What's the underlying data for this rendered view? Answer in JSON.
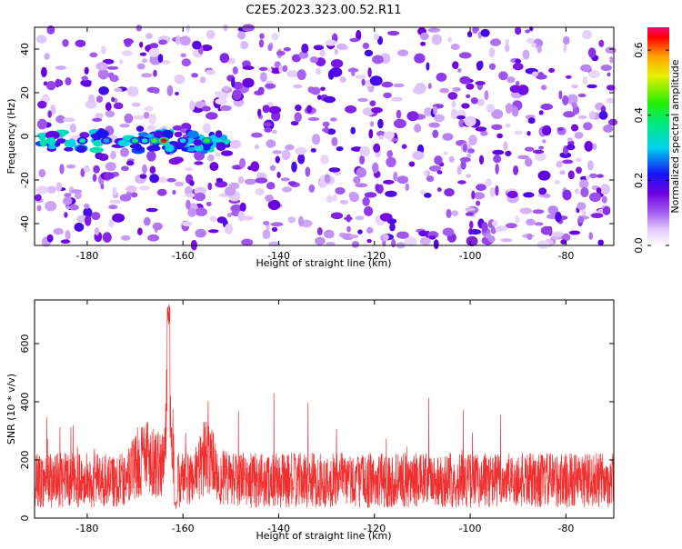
{
  "title": "C2E5.2023.323.00.52.R11",
  "spectrogram": {
    "type": "heatmap",
    "xlabel": "Height of straight line (km)",
    "ylabel": "Frequency (Hz)",
    "xlim": [
      -191,
      -70
    ],
    "ylim": [
      -50,
      50
    ],
    "xticks": [
      -180,
      -160,
      -140,
      -120,
      -100,
      -80
    ],
    "yticks": [
      -40,
      -20,
      0,
      20,
      40
    ],
    "colorbar": {
      "label": "Normalized spectral amplitude",
      "range": [
        0,
        0.67
      ],
      "ticks": [
        0.0,
        0.2,
        0.4,
        0.6
      ],
      "tick_labels": [
        "0.0",
        "0.2",
        "0.4",
        "0.6"
      ]
    },
    "signal_band": {
      "x_range": [
        -190,
        -151
      ],
      "frequency": -2,
      "peak_x": -164,
      "peak_value": 0.67
    }
  },
  "snr": {
    "type": "line",
    "xlabel": "Height of straight line (km)",
    "ylabel": "SNR (10 * v/v)",
    "xlim": [
      -191,
      -70
    ],
    "ylim": [
      0,
      750
    ],
    "xticks": [
      -180,
      -160,
      -140,
      -120,
      -100,
      -80
    ],
    "yticks": [
      0,
      200,
      400,
      600
    ],
    "series_color": "#f03030",
    "peak": {
      "x": -163,
      "value": 735
    },
    "baseline": 130
  }
}
